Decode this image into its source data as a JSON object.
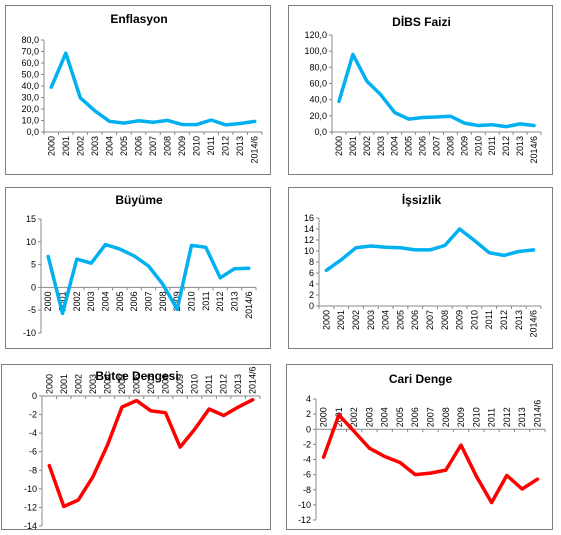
{
  "chart_data": [
    {
      "type": "line",
      "title": "Enflasyon",
      "categories": [
        "2000",
        "2001",
        "2002",
        "2003",
        "2004",
        "2005",
        "2006",
        "2007",
        "2008",
        "2009",
        "2010",
        "2011",
        "2012",
        "2013",
        "2014/6"
      ],
      "series": [
        {
          "values": [
            39.0,
            68.5,
            29.7,
            18.4,
            9.3,
            7.7,
            9.7,
            8.4,
            10.1,
            6.5,
            6.4,
            10.4,
            6.2,
            7.4,
            9.2
          ]
        }
      ],
      "ylim": [
        0,
        80
      ],
      "yticks": [
        0,
        10,
        20,
        30,
        40,
        50,
        60,
        70,
        80
      ],
      "ytick_labels": [
        "0,0",
        "10,0",
        "20,0",
        "30,0",
        "40,0",
        "50,0",
        "60,0",
        "70,0",
        "80,0"
      ],
      "color": "#00B0F0",
      "grid": false
    },
    {
      "type": "line",
      "title": "DİBS Faizi",
      "categories": [
        "2000",
        "2001",
        "2002",
        "2003",
        "2004",
        "2005",
        "2006",
        "2007",
        "2008",
        "2009",
        "2010",
        "2011",
        "2012",
        "2013",
        "2014/6"
      ],
      "series": [
        {
          "values": [
            38,
            96,
            63,
            46,
            24,
            16,
            18,
            18.5,
            19.5,
            11,
            8,
            9,
            6.5,
            10,
            8
          ]
        }
      ],
      "ylim": [
        0,
        120
      ],
      "yticks": [
        0,
        20,
        40,
        60,
        80,
        100,
        120
      ],
      "ytick_labels": [
        "0,0",
        "20,0",
        "40,0",
        "60,0",
        "80,0",
        "100,0",
        "120,0"
      ],
      "color": "#00B0F0",
      "grid": false
    },
    {
      "type": "line",
      "title": "Büyüme",
      "categories": [
        "2000",
        "2001",
        "2002",
        "2003",
        "2004",
        "2005",
        "2006",
        "2007",
        "2008",
        "2009",
        "2010",
        "2011",
        "2012",
        "2013",
        "2014/6"
      ],
      "series": [
        {
          "values": [
            6.8,
            -5.7,
            6.2,
            5.3,
            9.4,
            8.4,
            6.9,
            4.7,
            0.7,
            -4.8,
            9.2,
            8.8,
            2.1,
            4.1,
            4.2
          ]
        }
      ],
      "ylim": [
        -10,
        15
      ],
      "yticks": [
        -10,
        -5,
        0,
        5,
        10,
        15
      ],
      "ytick_labels": [
        "-10",
        "-5",
        "0",
        "5",
        "10",
        "15"
      ],
      "color": "#00B0F0",
      "grid": false
    },
    {
      "type": "line",
      "title": "İşsizlik",
      "categories": [
        "2000",
        "2001",
        "2002",
        "2003",
        "2004",
        "2005",
        "2006",
        "2007",
        "2008",
        "2009",
        "2010",
        "2011",
        "2012",
        "2013",
        "2014/6"
      ],
      "series": [
        {
          "values": [
            6.5,
            8.4,
            10.6,
            10.9,
            10.7,
            10.6,
            10.2,
            10.2,
            11.0,
            14.0,
            11.9,
            9.7,
            9.2,
            9.9,
            10.2
          ]
        }
      ],
      "ylim": [
        0,
        16
      ],
      "yticks": [
        0,
        2,
        4,
        6,
        8,
        10,
        12,
        14,
        16
      ],
      "ytick_labels": [
        "0",
        "2",
        "4",
        "6",
        "8",
        "10",
        "12",
        "14",
        "16"
      ],
      "color": "#00B0F0",
      "grid": false
    },
    {
      "type": "line",
      "title": "Bütçe Dengesi",
      "categories": [
        "2000",
        "2001",
        "2002",
        "2003",
        "2004",
        "2005",
        "2006",
        "2007",
        "2008",
        "2009",
        "2010",
        "2011",
        "2012",
        "2013",
        "2014/6"
      ],
      "series": [
        {
          "values": [
            -7.5,
            -11.9,
            -11.2,
            -8.7,
            -5.3,
            -1.2,
            -0.5,
            -1.6,
            -1.8,
            -5.5,
            -3.6,
            -1.4,
            -2.1,
            -1.2,
            -0.4
          ]
        }
      ],
      "ylim": [
        -14,
        0
      ],
      "yticks": [
        -14,
        -12,
        -10,
        -8,
        -6,
        -4,
        -2,
        0
      ],
      "ytick_labels": [
        "-14",
        "-12",
        "-10",
        "-8",
        "-6",
        "-4",
        "-2",
        "0"
      ],
      "color": "#FF0000",
      "grid": false
    },
    {
      "type": "line",
      "title": "Cari Denge",
      "categories": [
        "2000",
        "2001",
        "2002",
        "2003",
        "2004",
        "2005",
        "2006",
        "2007",
        "2008",
        "2009",
        "2010",
        "2011",
        "2012",
        "2013",
        "2014/6"
      ],
      "series": [
        {
          "values": [
            -3.7,
            1.9,
            -0.3,
            -2.5,
            -3.6,
            -4.4,
            -6.0,
            -5.8,
            -5.4,
            -2.1,
            -6.2,
            -9.7,
            -6.1,
            -7.9,
            -6.6
          ]
        }
      ],
      "ylim": [
        -12,
        4
      ],
      "yticks": [
        -12,
        -10,
        -8,
        -6,
        -4,
        -2,
        0,
        2,
        4
      ],
      "ytick_labels": [
        "-12",
        "-10",
        "-8",
        "-6",
        "-4",
        "-2",
        "0",
        "2",
        "4"
      ],
      "color": "#FF0000",
      "grid": false
    }
  ]
}
